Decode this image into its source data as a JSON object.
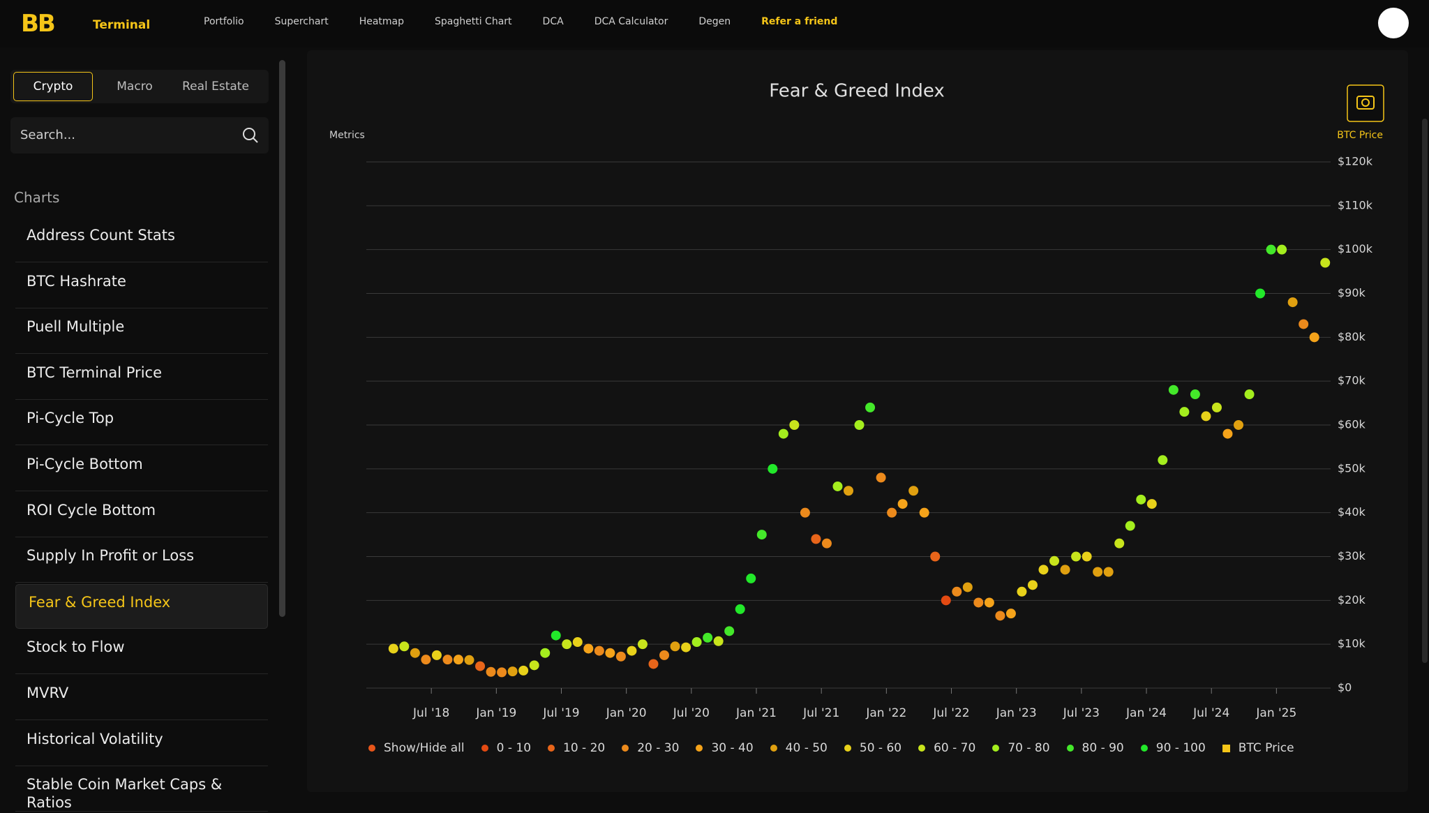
{
  "header": {
    "logo_mark": "BB",
    "logo_text": "Terminal",
    "nav": [
      "Portfolio",
      "Superchart",
      "Heatmap",
      "Spaghetti Chart",
      "DCA",
      "DCA Calculator",
      "Degen"
    ],
    "refer": "Refer a friend"
  },
  "sidebar": {
    "tabs": [
      "Crypto",
      "Macro",
      "Real Estate"
    ],
    "active_tab": 0,
    "search": "Search...",
    "section": "Charts",
    "active_item": 8,
    "items": [
      "Address Count Stats",
      "BTC Hashrate",
      "Puell Multiple",
      "BTC Terminal Price",
      "Pi-Cycle Top",
      "Pi-Cycle Bottom",
      "ROI Cycle Bottom",
      "Supply In Profit or Loss",
      "Fear & Greed Index",
      "Stock to Flow",
      "MVRV",
      "Historical Volatility",
      "Stable Coin Market Caps & Ratios"
    ]
  },
  "chart_data": {
    "type": "scatter",
    "title": "Fear & Greed Index",
    "left_label": "Metrics",
    "y_label": "BTC Price",
    "legend_toggle": "Show/Hide all",
    "legend_toggle_color": "#e8561a",
    "price_legend": {
      "name": "BTC Price",
      "color": "#f5c518"
    },
    "grid": true,
    "xlim": [
      "2018-01",
      "2025-06"
    ],
    "xticks": [
      {
        "value": "2018-07",
        "label": "Jul '18"
      },
      {
        "value": "2019-01",
        "label": "Jan '19"
      },
      {
        "value": "2019-07",
        "label": "Jul '19"
      },
      {
        "value": "2020-01",
        "label": "Jan '20"
      },
      {
        "value": "2020-07",
        "label": "Jul '20"
      },
      {
        "value": "2021-01",
        "label": "Jan '21"
      },
      {
        "value": "2021-07",
        "label": "Jul '21"
      },
      {
        "value": "2022-01",
        "label": "Jan '22"
      },
      {
        "value": "2022-07",
        "label": "Jul '22"
      },
      {
        "value": "2023-01",
        "label": "Jan '23"
      },
      {
        "value": "2023-07",
        "label": "Jul '23"
      },
      {
        "value": "2024-01",
        "label": "Jan '24"
      },
      {
        "value": "2024-07",
        "label": "Jul '24"
      },
      {
        "value": "2025-01",
        "label": "Jan '25"
      }
    ],
    "ylim": [
      0,
      120000
    ],
    "yticks": [
      {
        "value": 0,
        "label": "$0"
      },
      {
        "value": 10000,
        "label": "$10k"
      },
      {
        "value": 20000,
        "label": "$20k"
      },
      {
        "value": 30000,
        "label": "$30k"
      },
      {
        "value": 40000,
        "label": "$40k"
      },
      {
        "value": 50000,
        "label": "$50k"
      },
      {
        "value": 60000,
        "label": "$60k"
      },
      {
        "value": 70000,
        "label": "$70k"
      },
      {
        "value": 80000,
        "label": "$80k"
      },
      {
        "value": 90000,
        "label": "$90k"
      },
      {
        "value": 100000,
        "label": "$100k"
      },
      {
        "value": 110000,
        "label": "$110k"
      },
      {
        "value": 120000,
        "label": "$120k"
      }
    ],
    "series": [
      {
        "name": "0 - 10",
        "color": "#e34a12",
        "x": [
          "2022-06"
        ],
        "values": [
          20000
        ]
      },
      {
        "name": "10 - 20",
        "color": "#e8651a",
        "x": [
          "2018-11",
          "2020-03",
          "2021-06",
          "2022-05"
        ],
        "values": [
          5000,
          5500,
          34000,
          30000
        ]
      },
      {
        "name": "20 - 30",
        "color": "#ec8a1c",
        "x": [
          "2018-06",
          "2018-08",
          "2018-12",
          "2019-01",
          "2019-10",
          "2019-12",
          "2020-04",
          "2021-05",
          "2021-07",
          "2021-12",
          "2022-01",
          "2022-07",
          "2022-09",
          "2022-11",
          "2025-03"
        ],
        "values": [
          6500,
          6500,
          3700,
          3600,
          8500,
          7200,
          7500,
          40000,
          33000,
          48000,
          40000,
          22000,
          19500,
          16500,
          83000
        ]
      },
      {
        "name": "30 - 40",
        "color": "#f5a31a",
        "x": [
          "2018-09",
          "2019-09",
          "2019-11",
          "2022-02",
          "2022-04",
          "2022-10",
          "2022-12",
          "2024-08",
          "2025-04"
        ],
        "values": [
          6500,
          9000,
          8000,
          42000,
          40000,
          19500,
          17000,
          58000,
          80000
        ]
      },
      {
        "name": "40 - 50",
        "color": "#e0a010",
        "x": [
          "2018-05",
          "2018-10",
          "2019-02",
          "2020-05",
          "2021-09",
          "2022-03",
          "2022-08",
          "2023-05",
          "2023-08",
          "2023-09",
          "2024-09",
          "2025-02"
        ],
        "values": [
          8000,
          6400,
          3800,
          9500,
          45000,
          45000,
          23000,
          27000,
          26500,
          26500,
          60000,
          88000
        ]
      },
      {
        "name": "50 - 60",
        "color": "#e8d11a",
        "x": [
          "2018-03",
          "2018-07",
          "2019-03",
          "2019-08",
          "2020-01",
          "2020-06",
          "2023-01",
          "2023-02",
          "2023-03",
          "2023-07",
          "2024-01",
          "2024-06"
        ],
        "values": [
          9000,
          7500,
          4000,
          10500,
          8500,
          9300,
          22000,
          23500,
          27000,
          30000,
          42000,
          62000
        ]
      },
      {
        "name": "60 - 70",
        "color": "#c8e41c",
        "x": [
          "2018-04",
          "2019-04",
          "2019-07",
          "2020-02",
          "2020-09",
          "2021-04",
          "2023-04",
          "2023-06",
          "2023-10",
          "2024-07",
          "2025-05"
        ],
        "values": [
          9500,
          5200,
          10000,
          10000,
          10700,
          60000,
          29000,
          30000,
          33000,
          64000,
          97000
        ]
      },
      {
        "name": "70 - 80",
        "color": "#a4ee1e",
        "x": [
          "2019-05",
          "2020-07",
          "2021-03",
          "2021-08",
          "2021-10",
          "2023-11",
          "2023-12",
          "2024-02",
          "2024-04",
          "2024-10",
          "2025-01"
        ],
        "values": [
          8000,
          10500,
          58000,
          46000,
          60000,
          37000,
          43000,
          52000,
          63000,
          67000,
          100000
        ]
      },
      {
        "name": "80 - 90",
        "color": "#44e82a",
        "x": [
          "2020-08",
          "2020-10",
          "2021-01",
          "2021-11",
          "2024-03",
          "2024-05",
          "2024-12"
        ],
        "values": [
          11500,
          13000,
          35000,
          64000,
          68000,
          67000,
          100000
        ]
      },
      {
        "name": "90 - 100",
        "color": "#22e82a",
        "x": [
          "2019-06",
          "2020-11",
          "2020-12",
          "2021-02",
          "2024-11"
        ],
        "values": [
          12000,
          18000,
          25000,
          50000,
          90000
        ]
      }
    ]
  }
}
